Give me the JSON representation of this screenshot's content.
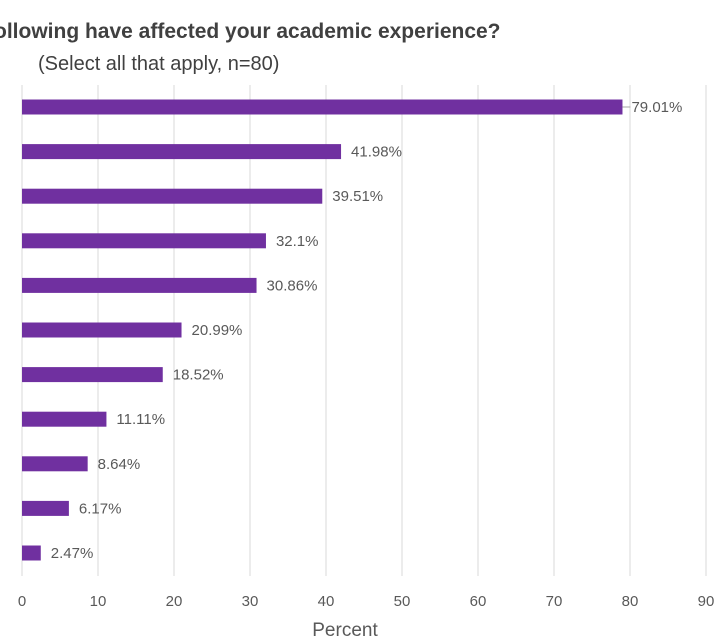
{
  "chart_data": {
    "type": "bar",
    "orientation": "horizontal",
    "title": "ollowing have affected your academic experience?",
    "subtitle": "(Select all that apply, n=80)",
    "xlabel": "Percent",
    "xlim": [
      0,
      90
    ],
    "xticks": [
      0,
      10,
      20,
      30,
      40,
      50,
      60,
      70,
      80,
      90
    ],
    "grid": true,
    "values": [
      79.01,
      41.98,
      39.51,
      32.1,
      30.86,
      20.99,
      18.52,
      11.11,
      8.64,
      6.17,
      2.47
    ],
    "value_labels": [
      "79.01%",
      "41.98%",
      "39.51%",
      "32.1%",
      "30.86%",
      "20.99%",
      "18.52%",
      "11.11%",
      "8.64%",
      "6.17%",
      "2.47%"
    ],
    "bar_color": "#7030a0",
    "grid_color": "#d9d9d9"
  }
}
